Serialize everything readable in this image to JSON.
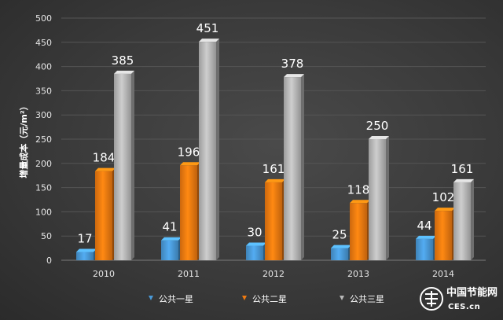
{
  "chart_data": {
    "type": "bar",
    "categories": [
      "2010",
      "2011",
      "2012",
      "2013",
      "2014"
    ],
    "series": [
      {
        "name": "公共一星",
        "values": [
          17,
          41,
          30,
          25,
          44
        ],
        "color": "#4a9ad8"
      },
      {
        "name": "公共二星",
        "values": [
          184,
          196,
          161,
          118,
          102
        ],
        "color": "#f07a10"
      },
      {
        "name": "公共三星",
        "values": [
          385,
          451,
          378,
          250,
          161
        ],
        "color": "#b8b8b8"
      }
    ],
    "ylabel": "增量成本（元/m²）",
    "yticks": [
      0,
      50,
      100,
      150,
      200,
      250,
      300,
      350,
      400,
      450,
      500
    ],
    "ylim": [
      0,
      500
    ],
    "grid": true,
    "legend": "bottom",
    "style": "3d-bars"
  },
  "watermark": {
    "text_cn": "中国节能网",
    "text_en": "CES.cn"
  }
}
